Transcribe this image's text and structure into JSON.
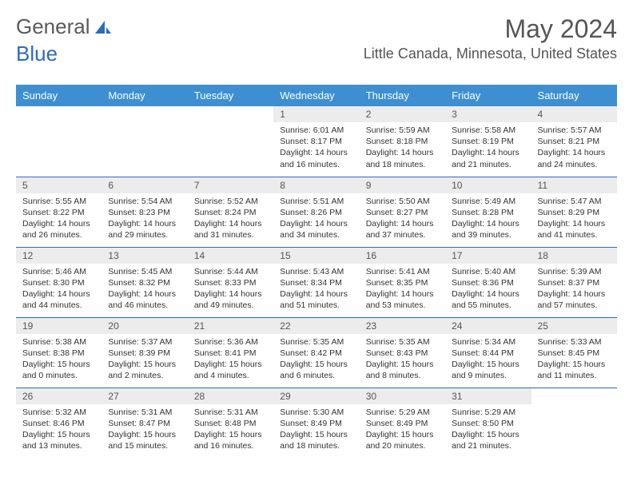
{
  "logo": {
    "part1": "General",
    "part2": "Blue"
  },
  "title": "May 2024",
  "location": "Little Canada, Minnesota, United States",
  "colors": {
    "header_bg": "#3e8fd1",
    "header_text": "#ffffff",
    "daynum_bg": "#ececec",
    "rule": "#2a6db8",
    "text": "#333333",
    "title_text": "#555555"
  },
  "day_headers": [
    "Sunday",
    "Monday",
    "Tuesday",
    "Wednesday",
    "Thursday",
    "Friday",
    "Saturday"
  ],
  "weeks": [
    [
      {
        "num": "",
        "lines": []
      },
      {
        "num": "",
        "lines": []
      },
      {
        "num": "",
        "lines": []
      },
      {
        "num": "1",
        "lines": [
          "Sunrise: 6:01 AM",
          "Sunset: 8:17 PM",
          "Daylight: 14 hours",
          "and 16 minutes."
        ]
      },
      {
        "num": "2",
        "lines": [
          "Sunrise: 5:59 AM",
          "Sunset: 8:18 PM",
          "Daylight: 14 hours",
          "and 18 minutes."
        ]
      },
      {
        "num": "3",
        "lines": [
          "Sunrise: 5:58 AM",
          "Sunset: 8:19 PM",
          "Daylight: 14 hours",
          "and 21 minutes."
        ]
      },
      {
        "num": "4",
        "lines": [
          "Sunrise: 5:57 AM",
          "Sunset: 8:21 PM",
          "Daylight: 14 hours",
          "and 24 minutes."
        ]
      }
    ],
    [
      {
        "num": "5",
        "lines": [
          "Sunrise: 5:55 AM",
          "Sunset: 8:22 PM",
          "Daylight: 14 hours",
          "and 26 minutes."
        ]
      },
      {
        "num": "6",
        "lines": [
          "Sunrise: 5:54 AM",
          "Sunset: 8:23 PM",
          "Daylight: 14 hours",
          "and 29 minutes."
        ]
      },
      {
        "num": "7",
        "lines": [
          "Sunrise: 5:52 AM",
          "Sunset: 8:24 PM",
          "Daylight: 14 hours",
          "and 31 minutes."
        ]
      },
      {
        "num": "8",
        "lines": [
          "Sunrise: 5:51 AM",
          "Sunset: 8:26 PM",
          "Daylight: 14 hours",
          "and 34 minutes."
        ]
      },
      {
        "num": "9",
        "lines": [
          "Sunrise: 5:50 AM",
          "Sunset: 8:27 PM",
          "Daylight: 14 hours",
          "and 37 minutes."
        ]
      },
      {
        "num": "10",
        "lines": [
          "Sunrise: 5:49 AM",
          "Sunset: 8:28 PM",
          "Daylight: 14 hours",
          "and 39 minutes."
        ]
      },
      {
        "num": "11",
        "lines": [
          "Sunrise: 5:47 AM",
          "Sunset: 8:29 PM",
          "Daylight: 14 hours",
          "and 41 minutes."
        ]
      }
    ],
    [
      {
        "num": "12",
        "lines": [
          "Sunrise: 5:46 AM",
          "Sunset: 8:30 PM",
          "Daylight: 14 hours",
          "and 44 minutes."
        ]
      },
      {
        "num": "13",
        "lines": [
          "Sunrise: 5:45 AM",
          "Sunset: 8:32 PM",
          "Daylight: 14 hours",
          "and 46 minutes."
        ]
      },
      {
        "num": "14",
        "lines": [
          "Sunrise: 5:44 AM",
          "Sunset: 8:33 PM",
          "Daylight: 14 hours",
          "and 49 minutes."
        ]
      },
      {
        "num": "15",
        "lines": [
          "Sunrise: 5:43 AM",
          "Sunset: 8:34 PM",
          "Daylight: 14 hours",
          "and 51 minutes."
        ]
      },
      {
        "num": "16",
        "lines": [
          "Sunrise: 5:41 AM",
          "Sunset: 8:35 PM",
          "Daylight: 14 hours",
          "and 53 minutes."
        ]
      },
      {
        "num": "17",
        "lines": [
          "Sunrise: 5:40 AM",
          "Sunset: 8:36 PM",
          "Daylight: 14 hours",
          "and 55 minutes."
        ]
      },
      {
        "num": "18",
        "lines": [
          "Sunrise: 5:39 AM",
          "Sunset: 8:37 PM",
          "Daylight: 14 hours",
          "and 57 minutes."
        ]
      }
    ],
    [
      {
        "num": "19",
        "lines": [
          "Sunrise: 5:38 AM",
          "Sunset: 8:38 PM",
          "Daylight: 15 hours",
          "and 0 minutes."
        ]
      },
      {
        "num": "20",
        "lines": [
          "Sunrise: 5:37 AM",
          "Sunset: 8:39 PM",
          "Daylight: 15 hours",
          "and 2 minutes."
        ]
      },
      {
        "num": "21",
        "lines": [
          "Sunrise: 5:36 AM",
          "Sunset: 8:41 PM",
          "Daylight: 15 hours",
          "and 4 minutes."
        ]
      },
      {
        "num": "22",
        "lines": [
          "Sunrise: 5:35 AM",
          "Sunset: 8:42 PM",
          "Daylight: 15 hours",
          "and 6 minutes."
        ]
      },
      {
        "num": "23",
        "lines": [
          "Sunrise: 5:35 AM",
          "Sunset: 8:43 PM",
          "Daylight: 15 hours",
          "and 8 minutes."
        ]
      },
      {
        "num": "24",
        "lines": [
          "Sunrise: 5:34 AM",
          "Sunset: 8:44 PM",
          "Daylight: 15 hours",
          "and 9 minutes."
        ]
      },
      {
        "num": "25",
        "lines": [
          "Sunrise: 5:33 AM",
          "Sunset: 8:45 PM",
          "Daylight: 15 hours",
          "and 11 minutes."
        ]
      }
    ],
    [
      {
        "num": "26",
        "lines": [
          "Sunrise: 5:32 AM",
          "Sunset: 8:46 PM",
          "Daylight: 15 hours",
          "and 13 minutes."
        ]
      },
      {
        "num": "27",
        "lines": [
          "Sunrise: 5:31 AM",
          "Sunset: 8:47 PM",
          "Daylight: 15 hours",
          "and 15 minutes."
        ]
      },
      {
        "num": "28",
        "lines": [
          "Sunrise: 5:31 AM",
          "Sunset: 8:48 PM",
          "Daylight: 15 hours",
          "and 16 minutes."
        ]
      },
      {
        "num": "29",
        "lines": [
          "Sunrise: 5:30 AM",
          "Sunset: 8:49 PM",
          "Daylight: 15 hours",
          "and 18 minutes."
        ]
      },
      {
        "num": "30",
        "lines": [
          "Sunrise: 5:29 AM",
          "Sunset: 8:49 PM",
          "Daylight: 15 hours",
          "and 20 minutes."
        ]
      },
      {
        "num": "31",
        "lines": [
          "Sunrise: 5:29 AM",
          "Sunset: 8:50 PM",
          "Daylight: 15 hours",
          "and 21 minutes."
        ]
      },
      {
        "num": "",
        "lines": []
      }
    ]
  ]
}
